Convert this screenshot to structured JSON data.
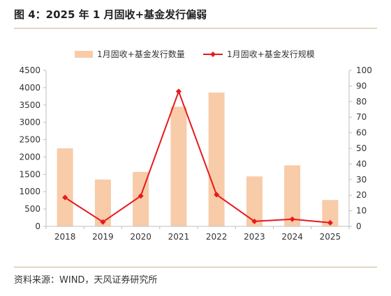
{
  "figure": {
    "title": "图 4：2025 年 1 月固收+基金发行偏弱",
    "source": "资料来源：WIND，天风证券研究所"
  },
  "colors": {
    "bar": "#f8cba9",
    "line": "#e8191c",
    "rule": "#c9b18b",
    "axis": "#bfbfbf"
  },
  "chart_data": {
    "type": "bar",
    "categories": [
      "2018",
      "2019",
      "2020",
      "2021",
      "2022",
      "2023",
      "2024",
      "2025"
    ],
    "series": [
      {
        "name": "1月固收+基金发行数量",
        "type": "bar",
        "axis": "left",
        "values": [
          2250,
          1350,
          1570,
          3450,
          3860,
          1440,
          1760,
          760
        ]
      },
      {
        "name": "1月固收+基金发行规模",
        "type": "line",
        "axis": "right",
        "marker": "diamond",
        "values": [
          18.5,
          2.8,
          19.5,
          86.5,
          20.3,
          3.2,
          4.6,
          2.3
        ]
      }
    ],
    "ylim_left": [
      0,
      4500
    ],
    "yticks_left": [
      "0",
      "500",
      "1000",
      "1500",
      "2000",
      "2500",
      "3000",
      "3500",
      "4000",
      "4500"
    ],
    "ylim_right": [
      0,
      100
    ],
    "yticks_right": [
      "0",
      "10",
      "20",
      "30",
      "40",
      "50",
      "60",
      "70",
      "80",
      "90",
      "100"
    ],
    "legend_position": "top",
    "grid": false
  }
}
